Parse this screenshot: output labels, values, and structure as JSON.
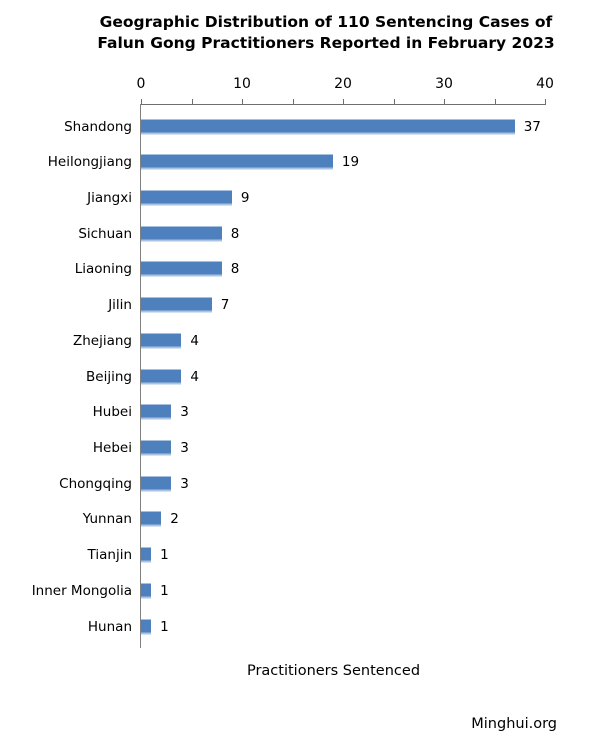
{
  "title": "Geographic Distribution of 110 Sentencing Cases of Falun Gong Practitioners Reported in February 2023",
  "title_lines": {
    "line1": "Geographic Distribution of 110 Sentencing Cases of",
    "line2": "Falun Gong Practitioners Reported in February 2023"
  },
  "source": "Minghui.org",
  "chart_data": {
    "type": "bar",
    "orientation": "horizontal",
    "title": "Geographic Distribution of 110 Sentencing Cases of Falun Gong Practitioners Reported in February 2023",
    "xlabel": "Practitioners Sentenced",
    "ylabel": "",
    "categories": [
      "Shandong",
      "Heilongjiang",
      "Jiangxi",
      "Sichuan",
      "Liaoning",
      "Jilin",
      "Zhejiang",
      "Beijing",
      "Hubei",
      "Hebei",
      "Chongqing",
      "Yunnan",
      "Tianjin",
      "Inner Mongolia",
      "Hunan"
    ],
    "values": [
      37,
      19,
      9,
      8,
      8,
      7,
      4,
      4,
      3,
      3,
      3,
      2,
      1,
      1,
      1
    ],
    "xlim": [
      0,
      40
    ],
    "x_major_ticks": [
      0,
      10,
      20,
      30,
      40
    ],
    "x_minor_tick_step": 5,
    "data_labels": true,
    "grid": false,
    "legend": false,
    "axis_position": "top",
    "bar_color": "#4d80bd",
    "bar_edge_color": "#a9c3e1",
    "axis_color": "#6e6e6e"
  }
}
